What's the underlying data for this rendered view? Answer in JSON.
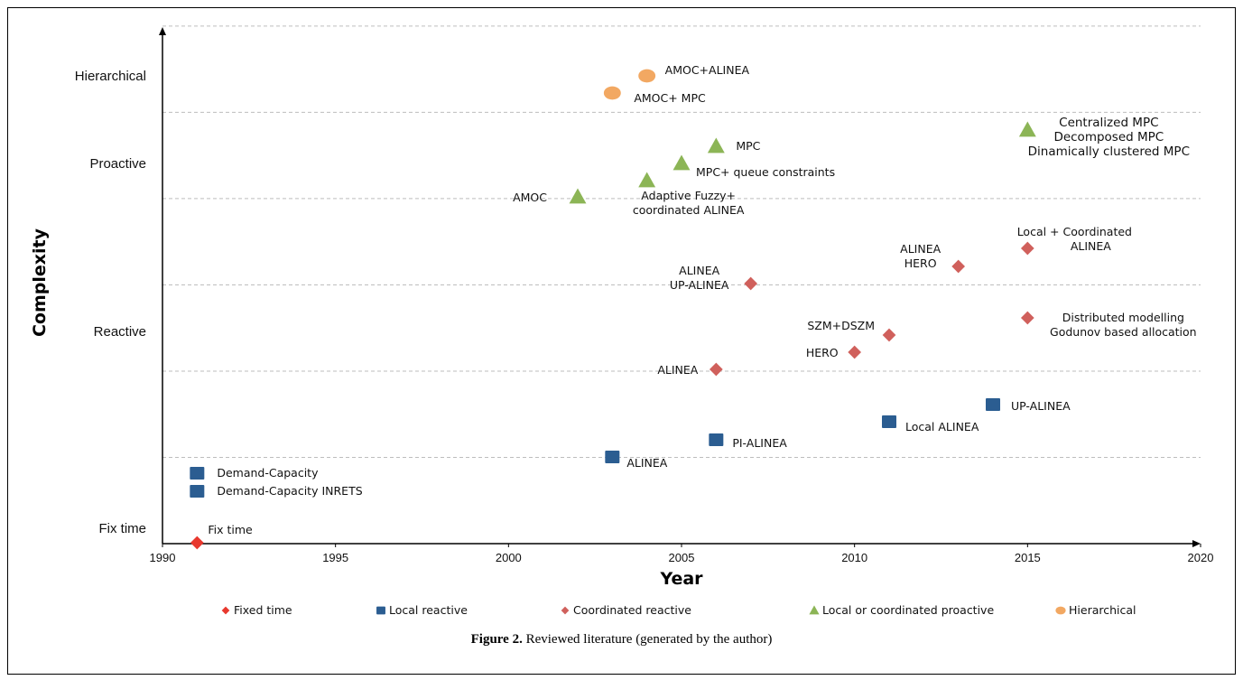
{
  "chart_data": {
    "type": "scatter",
    "xlabel": "Year",
    "ylabel": "Complexity",
    "xlim": [
      1990,
      2020
    ],
    "x_ticks": [
      1990,
      1995,
      2000,
      2005,
      2010,
      2015,
      2020
    ],
    "y_categories": [
      "Fix time",
      "Reactive",
      "Proactive",
      "Hierarchical"
    ],
    "grid": "horizontal dashed",
    "legend_position": "bottom",
    "series": [
      {
        "name": "Fixed time",
        "marker": "diamond",
        "color": "#e8382e",
        "points": [
          {
            "x": 1991,
            "y": 0.0,
            "label": [
              "Fix time"
            ]
          }
        ]
      },
      {
        "name": "Local reactive",
        "marker": "square",
        "color": "#2b5d91",
        "points": [
          {
            "x": 1991,
            "y": 0.85,
            "label": [
              "Demand-Capacity"
            ]
          },
          {
            "x": 1991,
            "y": 0.6,
            "label": [
              "Demand-Capacity INRETS"
            ]
          },
          {
            "x": 2003,
            "y": 1.1,
            "label": [
              "ALINEA"
            ]
          },
          {
            "x": 2006,
            "y": 1.3,
            "label": [
              "PI-ALINEA"
            ]
          },
          {
            "x": 2011,
            "y": 1.55,
            "label": [
              "Local ALINEA"
            ]
          },
          {
            "x": 2014,
            "y": 1.8,
            "label": [
              "UP-ALINEA"
            ]
          }
        ]
      },
      {
        "name": "Coordinated reactive",
        "marker": "diamond",
        "color": "#d0605c",
        "points": [
          {
            "x": 2006,
            "y": 2.3,
            "label": [
              "ALINEA"
            ]
          },
          {
            "x": 2010,
            "y": 2.55,
            "label": [
              "HERO"
            ]
          },
          {
            "x": 2011,
            "y": 2.8,
            "label": [
              "SZM+DSZM"
            ]
          },
          {
            "x": 2007,
            "y": 3.55,
            "label": [
              "ALINEA",
              "UP-ALINEA"
            ]
          },
          {
            "x": 2013,
            "y": 3.8,
            "label": [
              "ALINEA",
              "HERO"
            ]
          },
          {
            "x": 2015,
            "y": 3.05,
            "label": [
              "Distributed modelling",
              "Godunov based allocation"
            ]
          },
          {
            "x": 2015,
            "y": 4.05,
            "label": [
              "Local + Coordinated",
              "ALINEA"
            ]
          }
        ]
      },
      {
        "name": "Local or coordinated proactive",
        "marker": "triangle",
        "color": "#8cb556",
        "points": [
          {
            "x": 2002,
            "y": 4.8,
            "label": [
              "AMOC"
            ]
          },
          {
            "x": 2004,
            "y": 5.05,
            "label": [
              "Adaptive Fuzzy+",
              "coordinated ALINEA"
            ]
          },
          {
            "x": 2005,
            "y": 5.3,
            "label": [
              "MPC+ queue constraints"
            ]
          },
          {
            "x": 2006,
            "y": 5.55,
            "label": [
              "MPC"
            ]
          },
          {
            "x": 2015,
            "y": 5.8,
            "label": [
              "Centralized MPC",
              "Decomposed MPC",
              "Dinamically clustered MPC"
            ]
          }
        ]
      },
      {
        "name": "Hierarchical",
        "marker": "circle",
        "color": "#f2a862",
        "points": [
          {
            "x": 2003,
            "y": 6.5,
            "label": [
              "AMOC+ MPC"
            ]
          },
          {
            "x": 2004,
            "y": 6.8,
            "label": [
              "AMOC+ALINEA"
            ]
          }
        ]
      }
    ]
  },
  "caption": {
    "bold": "Figure 2.",
    "text": " Reviewed literature (generated by the author)"
  }
}
